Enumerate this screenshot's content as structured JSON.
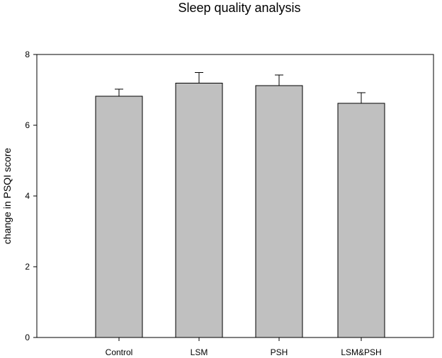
{
  "chart_data": {
    "type": "bar",
    "title": "Sleep quality analysis",
    "xlabel": "",
    "ylabel": "change in PSQI score",
    "categories": [
      "Control",
      "LSM",
      "PSH",
      "LSM&PSH"
    ],
    "values": [
      6.82,
      7.19,
      7.12,
      6.62
    ],
    "error_upper": [
      0.2,
      0.3,
      0.3,
      0.3
    ],
    "ylim": [
      0,
      8
    ],
    "yticks": [
      0,
      2,
      4,
      6,
      8
    ],
    "ytick_labels": [
      "0",
      "2",
      "4",
      "6",
      "8"
    ],
    "grid": false,
    "legend": "none",
    "bar_color": "#c0c0c0",
    "bar_edge_color": "#000000"
  }
}
